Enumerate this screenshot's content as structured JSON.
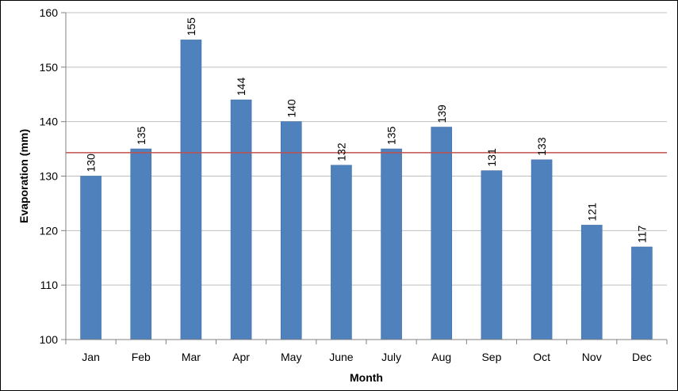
{
  "chart_data": {
    "type": "bar",
    "title": "",
    "xlabel": "Month",
    "ylabel": "Evaporation (mm)",
    "categories": [
      "Jan",
      "Feb",
      "Mar",
      "Apr",
      "May",
      "June",
      "July",
      "Aug",
      "Sep",
      "Oct",
      "Nov",
      "Dec"
    ],
    "values": [
      130,
      135,
      155,
      144,
      140,
      132,
      135,
      139,
      131,
      133,
      121,
      117
    ],
    "data_labels": [
      "130",
      "135",
      "155",
      "144",
      "140",
      "132",
      "135",
      "139",
      "131",
      "133",
      "121",
      "117"
    ],
    "ylim": [
      100,
      160
    ],
    "yticks": [
      100,
      110,
      120,
      130,
      140,
      150,
      160
    ],
    "ytick_labels": [
      "100",
      "110",
      "120",
      "130",
      "140",
      "150",
      "160"
    ],
    "grid": true,
    "legend": "none",
    "reference_line": {
      "value": 134.3,
      "color": "#c0504d"
    },
    "colors": {
      "bar": "#4f81bd",
      "gridline": "#bfbfbf",
      "axis": "#808080"
    }
  }
}
